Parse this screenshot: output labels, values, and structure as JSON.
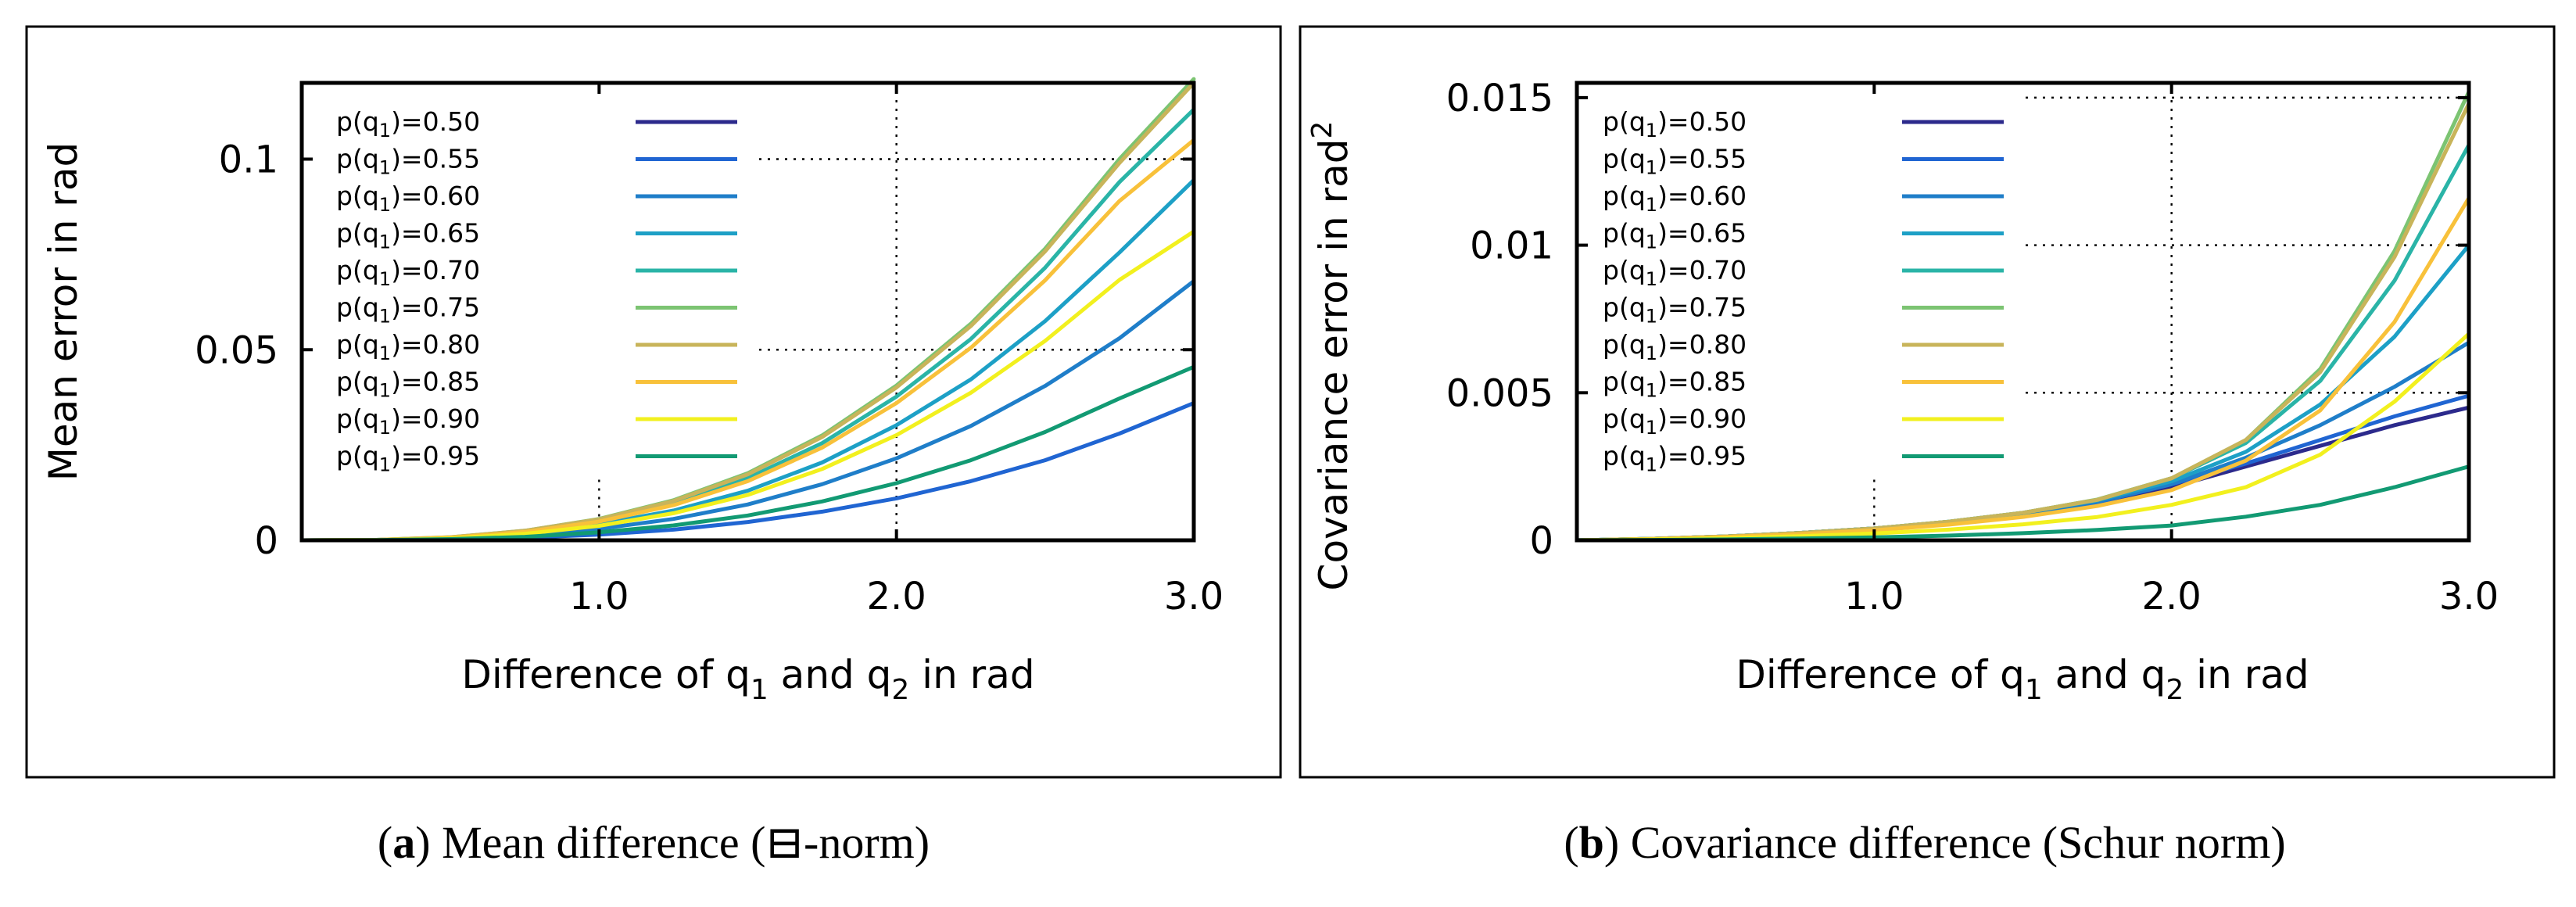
{
  "chart_data": [
    {
      "type": "line",
      "panel_label": "a",
      "caption": "Mean difference (⊟-norm)",
      "xlabel_parts": [
        "Difference of q",
        "1",
        " and q",
        "2",
        " in rad"
      ],
      "ylabel": "Mean error  in rad",
      "ylabel_sup": "",
      "xlim": [
        0,
        3.0
      ],
      "ylim": [
        0,
        0.12
      ],
      "x_ticks": [
        1.0,
        2.0,
        3.0
      ],
      "x_tick_labels": [
        "1.0",
        "2.0",
        "3.0"
      ],
      "y_ticks": [
        0,
        0.05,
        0.1
      ],
      "y_tick_labels": [
        "0",
        "0.05",
        "0.1"
      ],
      "grid": true,
      "legend_position": "top-left",
      "x": [
        0,
        0.25,
        0.5,
        0.75,
        1.0,
        1.25,
        1.5,
        1.75,
        2.0,
        2.25,
        2.5,
        2.75,
        3.0
      ],
      "series": [
        {
          "name_prefix": "p(q",
          "name_sub": "1",
          "name_suffix": ")=0.50",
          "color": "#2c2a8c",
          "values": [
            0,
            0,
            0,
            0,
            0,
            0,
            0,
            0,
            0,
            0,
            0,
            0,
            0
          ]
        },
        {
          "name_prefix": "p(q",
          "name_sub": "1",
          "name_suffix": ")=0.55",
          "color": "#2065d2",
          "values": [
            0,
            3e-05,
            0.0002,
            0.0007,
            0.0015,
            0.0028,
            0.0048,
            0.0075,
            0.011,
            0.0155,
            0.021,
            0.028,
            0.036
          ]
        },
        {
          "name_prefix": "p(q",
          "name_sub": "1",
          "name_suffix": ")=0.60",
          "color": "#1f7ec9",
          "values": [
            0,
            6e-05,
            0.0004,
            0.0013,
            0.003,
            0.0056,
            0.0094,
            0.0147,
            0.0215,
            0.03,
            0.0405,
            0.053,
            0.068
          ]
        },
        {
          "name_prefix": "p(q",
          "name_sub": "1",
          "name_suffix": ")=0.65",
          "color": "#1da0c6",
          "values": [
            0,
            8e-05,
            0.0006,
            0.0019,
            0.0042,
            0.0078,
            0.013,
            0.0204,
            0.0302,
            0.0422,
            0.0575,
            0.0755,
            0.0945
          ]
        },
        {
          "name_prefix": "p(q",
          "name_sub": "1",
          "name_suffix": ")=0.70",
          "color": "#2ab4a7",
          "values": [
            0,
            0.0001,
            0.0007,
            0.0023,
            0.0052,
            0.0097,
            0.0163,
            0.0255,
            0.0377,
            0.0528,
            0.0715,
            0.094,
            0.113
          ]
        },
        {
          "name_prefix": "p(q",
          "name_sub": "1",
          "name_suffix": ")=0.75",
          "color": "#7cc472",
          "values": [
            0,
            0.0001,
            0.0008,
            0.0025,
            0.0056,
            0.0105,
            0.0176,
            0.0275,
            0.0406,
            0.0568,
            0.0765,
            0.1,
            0.121
          ]
        },
        {
          "name_prefix": "p(q",
          "name_sub": "1",
          "name_suffix": ")=0.80",
          "color": "#c8b45a",
          "values": [
            0,
            0.0001,
            0.0008,
            0.0025,
            0.0055,
            0.0103,
            0.0173,
            0.0271,
            0.0401,
            0.0562,
            0.0758,
            0.099,
            0.12
          ]
        },
        {
          "name_prefix": "p(q",
          "name_sub": "1",
          "name_suffix": ")=0.85",
          "color": "#f8c13a",
          "values": [
            0,
            9e-05,
            0.0007,
            0.0022,
            0.0049,
            0.0092,
            0.0155,
            0.0243,
            0.036,
            0.0505,
            0.0682,
            0.089,
            0.105
          ]
        },
        {
          "name_prefix": "p(q",
          "name_sub": "1",
          "name_suffix": ")=0.90",
          "color": "#f2f01e",
          "values": [
            0,
            7e-05,
            0.0005,
            0.0017,
            0.0038,
            0.0071,
            0.0119,
            0.0187,
            0.0276,
            0.0387,
            0.0523,
            0.0683,
            0.081
          ]
        },
        {
          "name_prefix": "p(q",
          "name_sub": "1",
          "name_suffix": ")=0.95",
          "color": "#129a73",
          "values": [
            0,
            4e-05,
            0.0003,
            0.0009,
            0.0021,
            0.0039,
            0.0065,
            0.0102,
            0.015,
            0.021,
            0.0284,
            0.0372,
            0.0455
          ]
        }
      ]
    },
    {
      "type": "line",
      "panel_label": "b",
      "caption": "Covariance difference (Schur norm)",
      "xlabel_parts": [
        "Difference of q",
        "1",
        " and q",
        "2",
        " in rad"
      ],
      "ylabel": "Covariance error  in rad",
      "ylabel_sup": "2",
      "xlim": [
        0,
        3.0
      ],
      "ylim": [
        0,
        0.0155
      ],
      "x_ticks": [
        1.0,
        2.0,
        3.0
      ],
      "x_tick_labels": [
        "1.0",
        "2.0",
        "3.0"
      ],
      "y_ticks": [
        0,
        0.005,
        0.01,
        0.015
      ],
      "y_tick_labels": [
        "0",
        "0.005",
        "0.01",
        "0.015"
      ],
      "grid": true,
      "legend_position": "top-left",
      "x": [
        0,
        0.25,
        0.5,
        0.75,
        1.0,
        1.25,
        1.5,
        1.75,
        2.0,
        2.25,
        2.5,
        2.75,
        3.0
      ],
      "series": [
        {
          "name_prefix": "p(q",
          "name_sub": "1",
          "name_suffix": ")=0.50",
          "color": "#2c2a8c",
          "values": [
            0,
            5e-05,
            0.00013,
            0.00025,
            0.0004,
            0.0006,
            0.00087,
            0.0012,
            0.0018,
            0.0025,
            0.0032,
            0.0039,
            0.0045
          ]
        },
        {
          "name_prefix": "p(q",
          "name_sub": "1",
          "name_suffix": ")=0.55",
          "color": "#2065d2",
          "values": [
            0,
            5e-05,
            0.00013,
            0.00025,
            0.0004,
            0.0006,
            0.0009,
            0.00128,
            0.0019,
            0.0026,
            0.0034,
            0.0042,
            0.0049
          ]
        },
        {
          "name_prefix": "p(q",
          "name_sub": "1",
          "name_suffix": ")=0.60",
          "color": "#1f7ec9",
          "values": [
            0,
            5e-05,
            0.00013,
            0.00025,
            0.0004,
            0.00062,
            0.0009,
            0.0013,
            0.0019,
            0.0028,
            0.0039,
            0.0052,
            0.0067
          ]
        },
        {
          "name_prefix": "p(q",
          "name_sub": "1",
          "name_suffix": ")=0.65",
          "color": "#1da0c6",
          "values": [
            0,
            5e-05,
            0.00013,
            0.00025,
            0.0004,
            0.00063,
            0.00093,
            0.00135,
            0.002,
            0.003,
            0.0046,
            0.0069,
            0.01
          ]
        },
        {
          "name_prefix": "p(q",
          "name_sub": "1",
          "name_suffix": ")=0.70",
          "color": "#2ab4a7",
          "values": [
            0,
            5e-05,
            0.00013,
            0.00025,
            0.0004,
            0.00063,
            0.00093,
            0.00137,
            0.0021,
            0.0033,
            0.0054,
            0.0088,
            0.0134
          ]
        },
        {
          "name_prefix": "p(q",
          "name_sub": "1",
          "name_suffix": ")=0.75",
          "color": "#7cc472",
          "values": [
            0,
            5e-05,
            0.00013,
            0.00025,
            0.0004,
            0.00063,
            0.00093,
            0.00138,
            0.0021,
            0.0034,
            0.0058,
            0.0098,
            0.0152
          ]
        },
        {
          "name_prefix": "p(q",
          "name_sub": "1",
          "name_suffix": ")=0.80",
          "color": "#c8b45a",
          "values": [
            0,
            5e-05,
            0.00013,
            0.00025,
            0.0004,
            0.00063,
            0.00093,
            0.00137,
            0.0021,
            0.0034,
            0.0057,
            0.0096,
            0.0148
          ]
        },
        {
          "name_prefix": "p(q",
          "name_sub": "1",
          "name_suffix": ")=0.85",
          "color": "#f8c13a",
          "values": [
            0,
            4e-05,
            0.00011,
            0.00021,
            0.00034,
            0.00053,
            0.00079,
            0.00116,
            0.0017,
            0.0027,
            0.0044,
            0.0074,
            0.0116
          ]
        },
        {
          "name_prefix": "p(q",
          "name_sub": "1",
          "name_suffix": ")=0.90",
          "color": "#f2f01e",
          "values": [
            0,
            3e-05,
            7e-05,
            0.00014,
            0.00023,
            0.00036,
            0.00054,
            0.00079,
            0.0012,
            0.0018,
            0.0029,
            0.0047,
            0.007
          ]
        },
        {
          "name_prefix": "p(q",
          "name_sub": "1",
          "name_suffix": ")=0.95",
          "color": "#129a73",
          "values": [
            0,
            1e-05,
            3e-05,
            6e-05,
            0.0001,
            0.00016,
            0.00024,
            0.00035,
            0.0005,
            0.0008,
            0.0012,
            0.0018,
            0.0025
          ]
        }
      ]
    }
  ]
}
